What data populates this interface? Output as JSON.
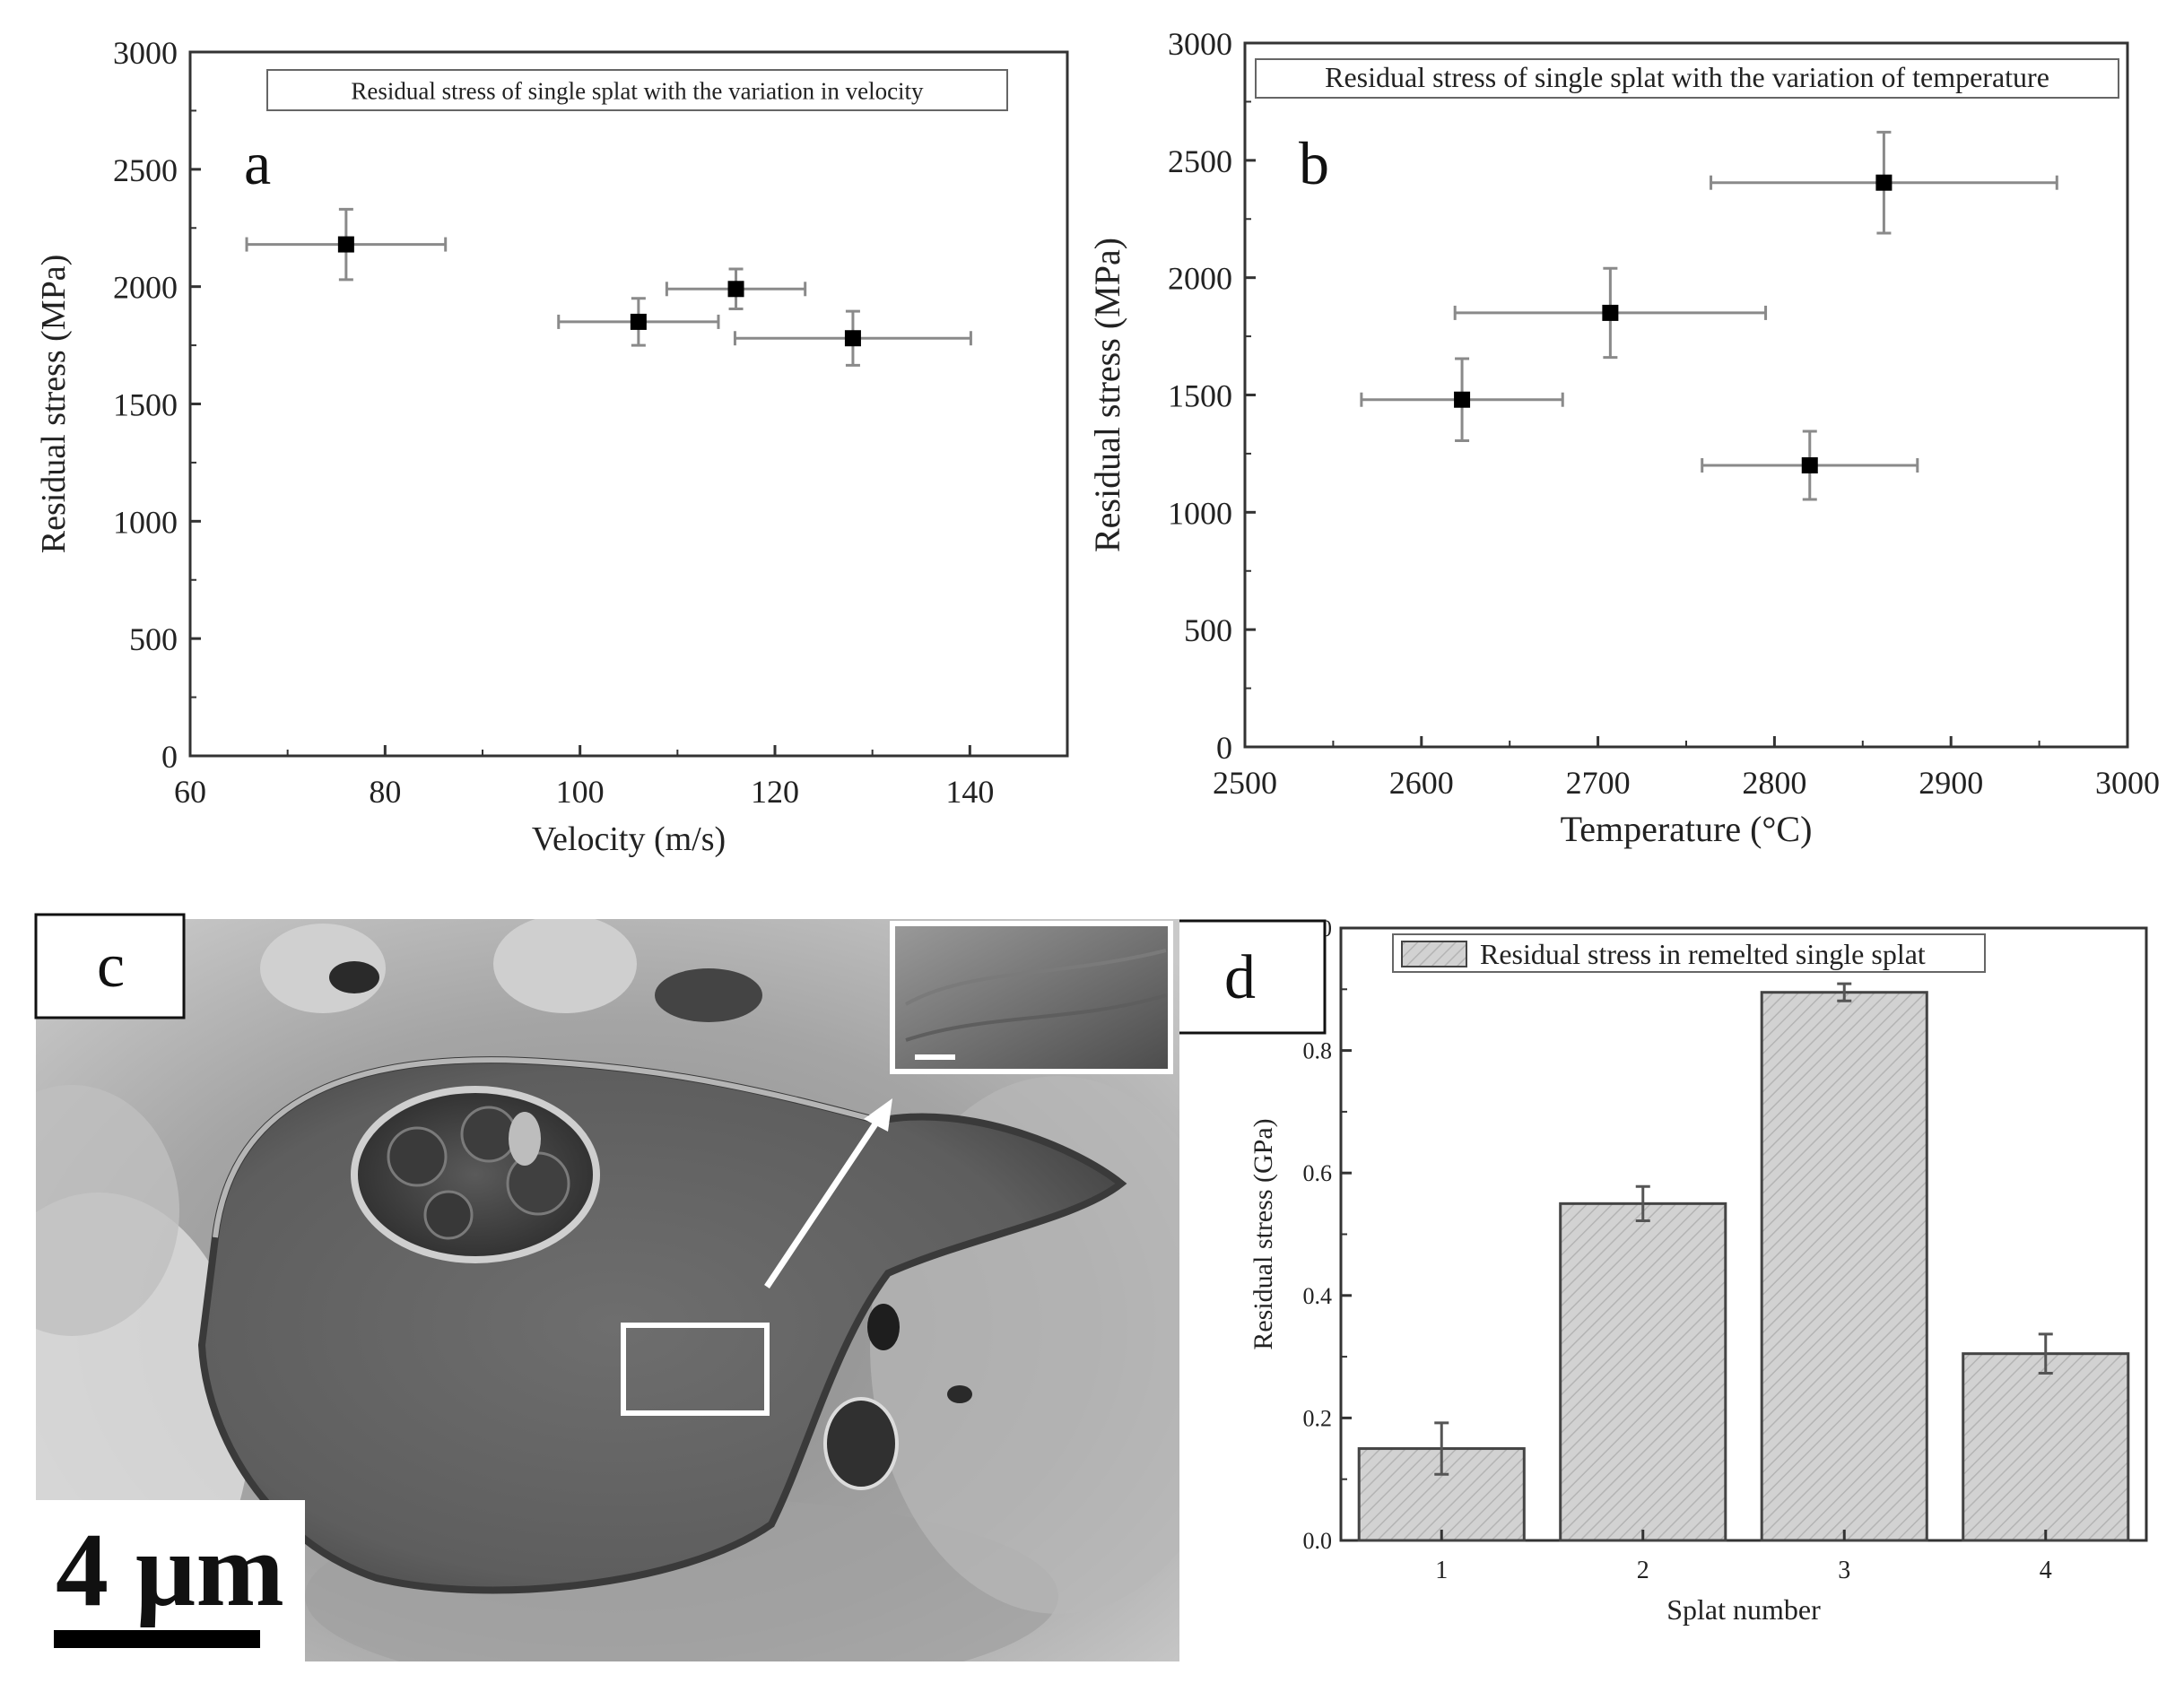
{
  "chart_data": [
    {
      "panel": "a",
      "type": "scatter",
      "title": "Residual stress of single splat with the variation in velocity",
      "xlabel": "Velocity (m/s)",
      "ylabel": "Residual stress (MPa)",
      "xlim": [
        60,
        150
      ],
      "ylim": [
        0,
        3000
      ],
      "xticks": [
        "60",
        "80",
        "100",
        "120",
        "140"
      ],
      "yticks": [
        "0",
        "500",
        "1000",
        "1500",
        "2000",
        "2500",
        "3000"
      ],
      "points": [
        {
          "x": 76,
          "y": 2180,
          "xerr": 10.2,
          "yerr": 150
        },
        {
          "x": 106,
          "y": 1850,
          "xerr": 8.2,
          "yerr": 100
        },
        {
          "x": 116,
          "y": 1990,
          "xerr": 7.1,
          "yerr": 85
        },
        {
          "x": 128,
          "y": 1780,
          "xerr": 12.1,
          "yerr": 115
        }
      ],
      "legend_position": "top-center"
    },
    {
      "panel": "b",
      "type": "scatter",
      "title": "Residual stress of single splat with the variation of temperature",
      "xlabel": "Temperature (°C)",
      "ylabel": "Residual stress (MPa)",
      "xlim": [
        2500,
        3000
      ],
      "ylim": [
        0,
        3000
      ],
      "xticks": [
        "2500",
        "2600",
        "2700",
        "2800",
        "2900",
        "3000"
      ],
      "yticks": [
        "0",
        "500",
        "1000",
        "1500",
        "2000",
        "2500",
        "3000"
      ],
      "points": [
        {
          "x": 2623,
          "y": 1480,
          "xerr": 57,
          "yerr": 175
        },
        {
          "x": 2707,
          "y": 1850,
          "xerr": 88,
          "yerr": 190
        },
        {
          "x": 2820,
          "y": 1200,
          "xerr": 61,
          "yerr": 145
        },
        {
          "x": 2862,
          "y": 2405,
          "xerr": 98,
          "yerr": 215
        }
      ],
      "legend_position": "top"
    },
    {
      "panel": "d",
      "type": "bar",
      "title": "Residual stress in remelted single splat",
      "xlabel": "Splat number",
      "ylabel": "Residual stress (GPa)",
      "categories": [
        "1",
        "2",
        "3",
        "4"
      ],
      "values": [
        0.15,
        0.55,
        0.895,
        0.305
      ],
      "errors": [
        0.042,
        0.028,
        0.014,
        0.032
      ],
      "ylim": [
        0,
        1.0
      ],
      "yticks": [
        "0.0",
        "0.2",
        "0.4",
        "0.6",
        "0.8",
        "1.0"
      ],
      "legend_position": "top-left"
    }
  ],
  "micrograph": {
    "panel_letter": "c",
    "scale_bar": "4 µm"
  },
  "panel_letters": {
    "a": "a",
    "b": "b",
    "c": "c",
    "d": "d"
  },
  "colors": {
    "axis": "#333333",
    "errorbar": "#8a8a8a",
    "bar_fill": "#d0d0d0",
    "marker": "#000000"
  }
}
